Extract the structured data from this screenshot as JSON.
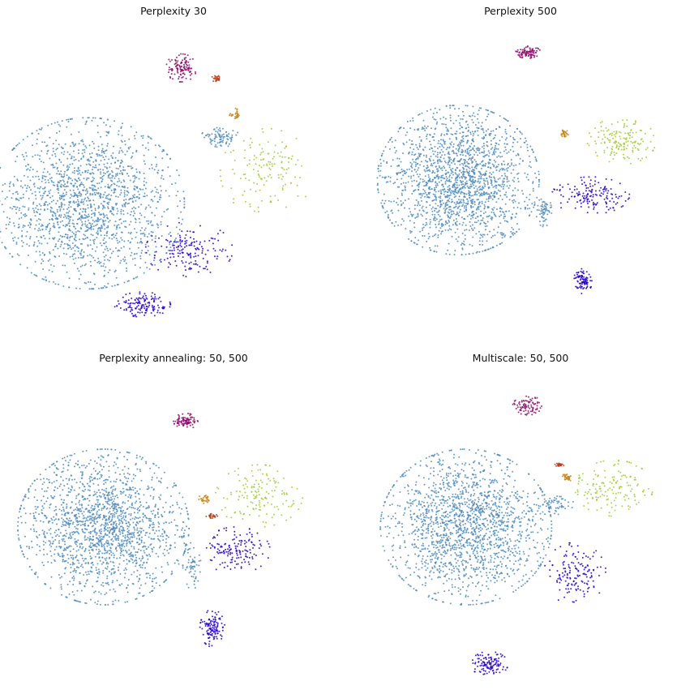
{
  "colors": {
    "steel_blue": "#4f8bbf",
    "blue": "#2200cc",
    "magenta": "#8e0a6b",
    "lime": "#a3c93a",
    "orange": "#c88414",
    "red_orange": "#b8401c"
  },
  "chart_data": [
    {
      "type": "scatter",
      "title": "Perplexity 30",
      "xlabel": "",
      "ylabel": "",
      "axes": "off",
      "grid": false,
      "clusters": [
        {
          "color": "steel_blue",
          "cx": -0.55,
          "cy": -0.15,
          "rx": 0.62,
          "ry": 0.55,
          "weight": 60
        },
        {
          "color": "steel_blue",
          "cx": 0.3,
          "cy": 0.28,
          "rx": 0.12,
          "ry": 0.07,
          "weight": 3
        },
        {
          "color": "magenta",
          "cx": 0.05,
          "cy": 0.72,
          "rx": 0.1,
          "ry": 0.09,
          "weight": 4
        },
        {
          "color": "blue",
          "cx": -0.2,
          "cy": -0.8,
          "rx": 0.18,
          "ry": 0.08,
          "weight": 5
        },
        {
          "color": "blue",
          "cx": 0.1,
          "cy": -0.45,
          "rx": 0.28,
          "ry": 0.18,
          "weight": 6
        },
        {
          "color": "lime",
          "cx": 0.6,
          "cy": 0.05,
          "rx": 0.3,
          "ry": 0.28,
          "weight": 5
        },
        {
          "color": "orange",
          "cx": 0.4,
          "cy": 0.42,
          "rx": 0.04,
          "ry": 0.04,
          "weight": 1
        },
        {
          "color": "red_orange",
          "cx": 0.28,
          "cy": 0.65,
          "rx": 0.04,
          "ry": 0.02,
          "weight": 1
        }
      ]
    },
    {
      "type": "scatter",
      "title": "Perplexity 500",
      "xlabel": "",
      "ylabel": "",
      "axes": "off",
      "grid": false,
      "clusters": [
        {
          "color": "steel_blue",
          "cx": -0.4,
          "cy": 0.0,
          "rx": 0.52,
          "ry": 0.48,
          "weight": 60
        },
        {
          "color": "steel_blue",
          "cx": 0.15,
          "cy": -0.2,
          "rx": 0.05,
          "ry": 0.1,
          "weight": 2
        },
        {
          "color": "magenta",
          "cx": 0.05,
          "cy": 0.82,
          "rx": 0.08,
          "ry": 0.04,
          "weight": 3
        },
        {
          "color": "blue",
          "cx": 0.4,
          "cy": -0.65,
          "rx": 0.06,
          "ry": 0.08,
          "weight": 3
        },
        {
          "color": "blue",
          "cx": 0.45,
          "cy": -0.1,
          "rx": 0.25,
          "ry": 0.12,
          "weight": 5
        },
        {
          "color": "lime",
          "cx": 0.65,
          "cy": 0.25,
          "rx": 0.22,
          "ry": 0.15,
          "weight": 5
        },
        {
          "color": "orange",
          "cx": 0.28,
          "cy": 0.3,
          "rx": 0.03,
          "ry": 0.03,
          "weight": 1
        }
      ]
    },
    {
      "type": "scatter",
      "title": "Perplexity annealing: 50, 500",
      "xlabel": "",
      "ylabel": "",
      "axes": "off",
      "grid": false,
      "clusters": [
        {
          "color": "steel_blue",
          "cx": -0.45,
          "cy": 0.0,
          "rx": 0.55,
          "ry": 0.5,
          "weight": 60
        },
        {
          "color": "steel_blue",
          "cx": 0.12,
          "cy": -0.25,
          "rx": 0.06,
          "ry": 0.15,
          "weight": 2
        },
        {
          "color": "magenta",
          "cx": 0.08,
          "cy": 0.68,
          "rx": 0.08,
          "ry": 0.05,
          "weight": 3
        },
        {
          "color": "blue",
          "cx": 0.25,
          "cy": -0.65,
          "rx": 0.08,
          "ry": 0.12,
          "weight": 4
        },
        {
          "color": "blue",
          "cx": 0.4,
          "cy": -0.15,
          "rx": 0.22,
          "ry": 0.15,
          "weight": 5
        },
        {
          "color": "lime",
          "cx": 0.55,
          "cy": 0.2,
          "rx": 0.28,
          "ry": 0.2,
          "weight": 5
        },
        {
          "color": "orange",
          "cx": 0.2,
          "cy": 0.18,
          "rx": 0.04,
          "ry": 0.03,
          "weight": 1
        },
        {
          "color": "red_orange",
          "cx": 0.25,
          "cy": 0.07,
          "rx": 0.04,
          "ry": 0.015,
          "weight": 1
        }
      ]
    },
    {
      "type": "scatter",
      "title": "Multiscale: 50, 500",
      "xlabel": "",
      "ylabel": "",
      "axes": "off",
      "grid": false,
      "clusters": [
        {
          "color": "steel_blue",
          "cx": -0.35,
          "cy": 0.0,
          "rx": 0.55,
          "ry": 0.5,
          "weight": 60
        },
        {
          "color": "steel_blue",
          "cx": 0.22,
          "cy": 0.15,
          "rx": 0.12,
          "ry": 0.07,
          "weight": 2
        },
        {
          "color": "magenta",
          "cx": 0.05,
          "cy": 0.78,
          "rx": 0.1,
          "ry": 0.06,
          "weight": 3
        },
        {
          "color": "blue",
          "cx": -0.2,
          "cy": -0.88,
          "rx": 0.12,
          "ry": 0.08,
          "weight": 4
        },
        {
          "color": "blue",
          "cx": 0.35,
          "cy": -0.3,
          "rx": 0.2,
          "ry": 0.2,
          "weight": 5
        },
        {
          "color": "lime",
          "cx": 0.6,
          "cy": 0.25,
          "rx": 0.25,
          "ry": 0.18,
          "weight": 5
        },
        {
          "color": "orange",
          "cx": 0.3,
          "cy": 0.32,
          "rx": 0.03,
          "ry": 0.03,
          "weight": 1
        },
        {
          "color": "red_orange",
          "cx": 0.25,
          "cy": 0.4,
          "rx": 0.03,
          "ry": 0.015,
          "weight": 1
        }
      ]
    }
  ]
}
